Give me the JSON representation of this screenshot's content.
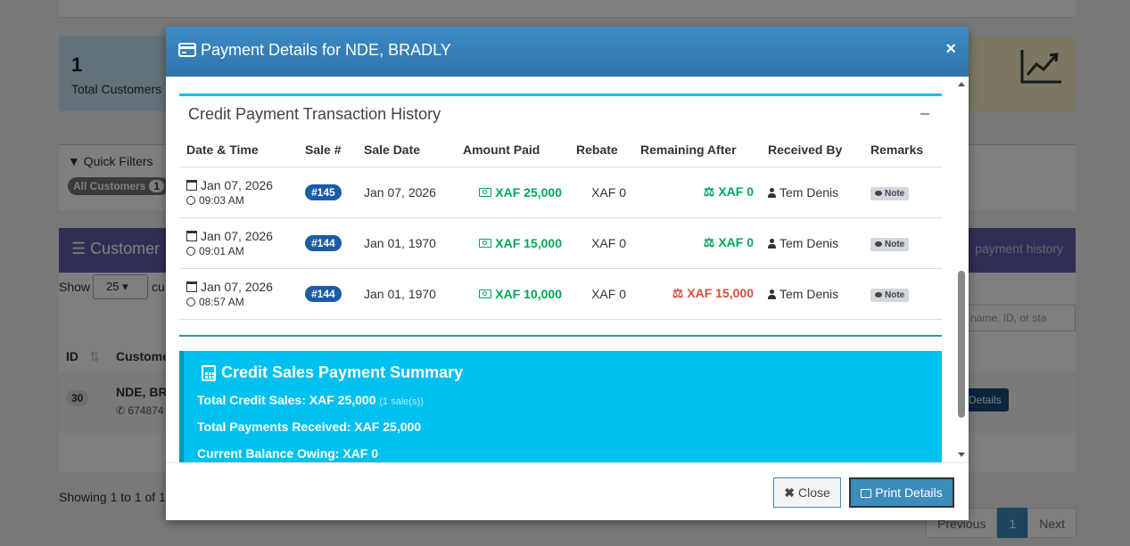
{
  "background": {
    "stat_card": {
      "value": "1",
      "label": "Total Customers"
    },
    "filters": {
      "title": "Quick Filters",
      "pill_label": "All Customers",
      "pill_count": "1"
    },
    "customers_panel": {
      "title": "Customer",
      "right_text": "payment history"
    },
    "table_controls": {
      "show_label": "Show",
      "page_size": "25",
      "after_label": "cu",
      "search_placeholder": "by name, ID, or sta"
    },
    "table_headers": {
      "id": "ID",
      "customer": "Custome"
    },
    "row": {
      "id": "30",
      "name": "NDE, BR",
      "phone": "674874",
      "details_button": "Details"
    },
    "showing_text": "Showing 1 to 1 of 1",
    "pager": {
      "previous": "Previous",
      "current": "1",
      "next": "Next"
    }
  },
  "modal": {
    "title": "Payment Details for NDE, BRADLY",
    "close_glyph": "×",
    "history": {
      "title": "Credit Payment Transaction History",
      "columns": [
        "Date & Time",
        "Sale #",
        "Sale Date",
        "Amount Paid",
        "Rebate",
        "Remaining After",
        "Received By",
        "Remarks"
      ],
      "rows": [
        {
          "date": "Jan 07, 2026",
          "time": "09:03 AM",
          "sale": "#145",
          "sale_date": "Jan 07, 2026",
          "amount": "XAF 25,000",
          "rebate": "XAF 0",
          "remaining": "XAF 0",
          "remaining_status": "paid",
          "received_by": "Tem Denis",
          "remarks": "Note"
        },
        {
          "date": "Jan 07, 2026",
          "time": "09:01 AM",
          "sale": "#144",
          "sale_date": "Jan 01, 1970",
          "amount": "XAF 15,000",
          "rebate": "XAF 0",
          "remaining": "XAF 0",
          "remaining_status": "paid",
          "received_by": "Tem Denis",
          "remarks": "Note"
        },
        {
          "date": "Jan 07, 2026",
          "time": "08:57 AM",
          "sale": "#144",
          "sale_date": "Jan 01, 1970",
          "amount": "XAF 10,000",
          "rebate": "XAF 0",
          "remaining": "XAF 15,000",
          "remaining_status": "owing",
          "received_by": "Tem Denis",
          "remarks": "Note"
        }
      ]
    },
    "summary": {
      "title": "Credit Sales Payment Summary",
      "total_credit_sales": "Total Credit Sales: XAF 25,000",
      "total_credit_sales_note": "(1 sale(s))",
      "total_payments": "Total Payments Received: XAF 25,000",
      "current_balance": "Current Balance Owing: XAF 0"
    },
    "footer": {
      "close_label": "Close",
      "print_label": "Print Details"
    }
  },
  "colors": {
    "header_blue": "#3c8dbc",
    "success_green": "#00a65a",
    "danger_red": "#dd4b39",
    "summary_cyan": "#00c0ef",
    "badge_blue": "#1a5da6"
  }
}
